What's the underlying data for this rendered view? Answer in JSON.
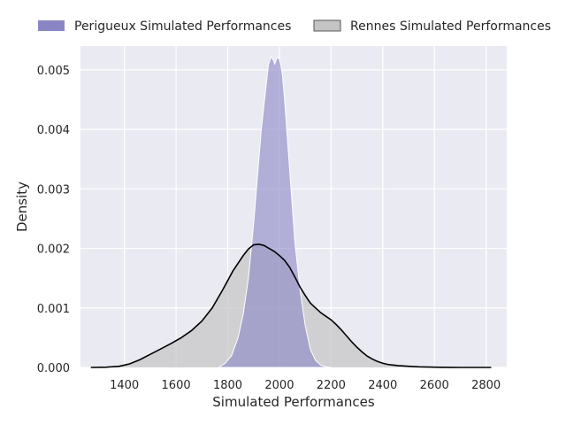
{
  "chart_data": {
    "type": "area",
    "subtype": "kde",
    "title": "",
    "xlabel": "Simulated Performances",
    "ylabel": "Density",
    "xlim": [
      1230,
      2880
    ],
    "ylim": [
      0,
      0.0054
    ],
    "xticks": [
      1400,
      1600,
      1800,
      2000,
      2200,
      2400,
      2600,
      2800
    ],
    "yticks": [
      0.0,
      0.001,
      0.002,
      0.003,
      0.004,
      0.005
    ],
    "xtick_labels": [
      "1400",
      "1600",
      "1800",
      "2000",
      "2200",
      "2400",
      "2600",
      "2800"
    ],
    "ytick_labels": [
      "0.000",
      "0.001",
      "0.002",
      "0.003",
      "0.004",
      "0.005"
    ],
    "grid": true,
    "legend_position": "top",
    "series": [
      {
        "name": "Perigueux Simulated Performances",
        "color": "#8a86c6",
        "fill_opacity": 0.6,
        "edge_color": "#ffffff",
        "x": [
          1765,
          1790,
          1815,
          1840,
          1860,
          1880,
          1900,
          1915,
          1930,
          1945,
          1958,
          1968,
          1975,
          1982,
          1990,
          1998,
          2005,
          2012,
          2020,
          2030,
          2045,
          2060,
          2080,
          2100,
          2120,
          2140,
          2160,
          2180,
          2200
        ],
        "y": [
          0.0,
          7e-05,
          0.0002,
          0.0005,
          0.0009,
          0.0015,
          0.0024,
          0.0032,
          0.004,
          0.0046,
          0.0051,
          0.00522,
          0.00518,
          0.0051,
          0.0052,
          0.0052,
          0.0051,
          0.0049,
          0.0045,
          0.0039,
          0.003,
          0.0021,
          0.0013,
          0.0007,
          0.0003,
          0.00012,
          4e-05,
          1e-05,
          0.0
        ]
      },
      {
        "name": "Rennes Simulated Performances",
        "color": "#c4c4c4",
        "fill_opacity": 0.7,
        "edge_color": "#000000",
        "x": [
          1270,
          1330,
          1380,
          1420,
          1460,
          1500,
          1540,
          1580,
          1620,
          1660,
          1700,
          1740,
          1780,
          1820,
          1860,
          1880,
          1900,
          1920,
          1940,
          1960,
          1980,
          2000,
          2020,
          2040,
          2060,
          2080,
          2100,
          2120,
          2140,
          2160,
          2180,
          2200,
          2220,
          2240,
          2260,
          2280,
          2300,
          2320,
          2340,
          2360,
          2380,
          2400,
          2420,
          2440,
          2460,
          2500,
          2540,
          2580,
          2620,
          2660,
          2700,
          2740,
          2780,
          2820
        ],
        "y": [
          0.0,
          5e-06,
          2e-05,
          6e-05,
          0.00013,
          0.00022,
          0.00031,
          0.0004,
          0.0005,
          0.00062,
          0.00078,
          0.001,
          0.0013,
          0.00162,
          0.00188,
          0.00199,
          0.00206,
          0.00207,
          0.00205,
          0.002,
          0.00195,
          0.00188,
          0.0018,
          0.00168,
          0.00152,
          0.00135,
          0.00121,
          0.00108,
          0.001,
          0.00092,
          0.00086,
          0.0008,
          0.00072,
          0.00063,
          0.00053,
          0.00043,
          0.00034,
          0.00026,
          0.00019,
          0.00014,
          0.0001,
          7e-05,
          5e-05,
          4e-05,
          3e-05,
          2e-05,
          1e-05,
          6e-06,
          3e-06,
          1e-06,
          0.0,
          0.0,
          0.0,
          0.0
        ]
      }
    ]
  }
}
